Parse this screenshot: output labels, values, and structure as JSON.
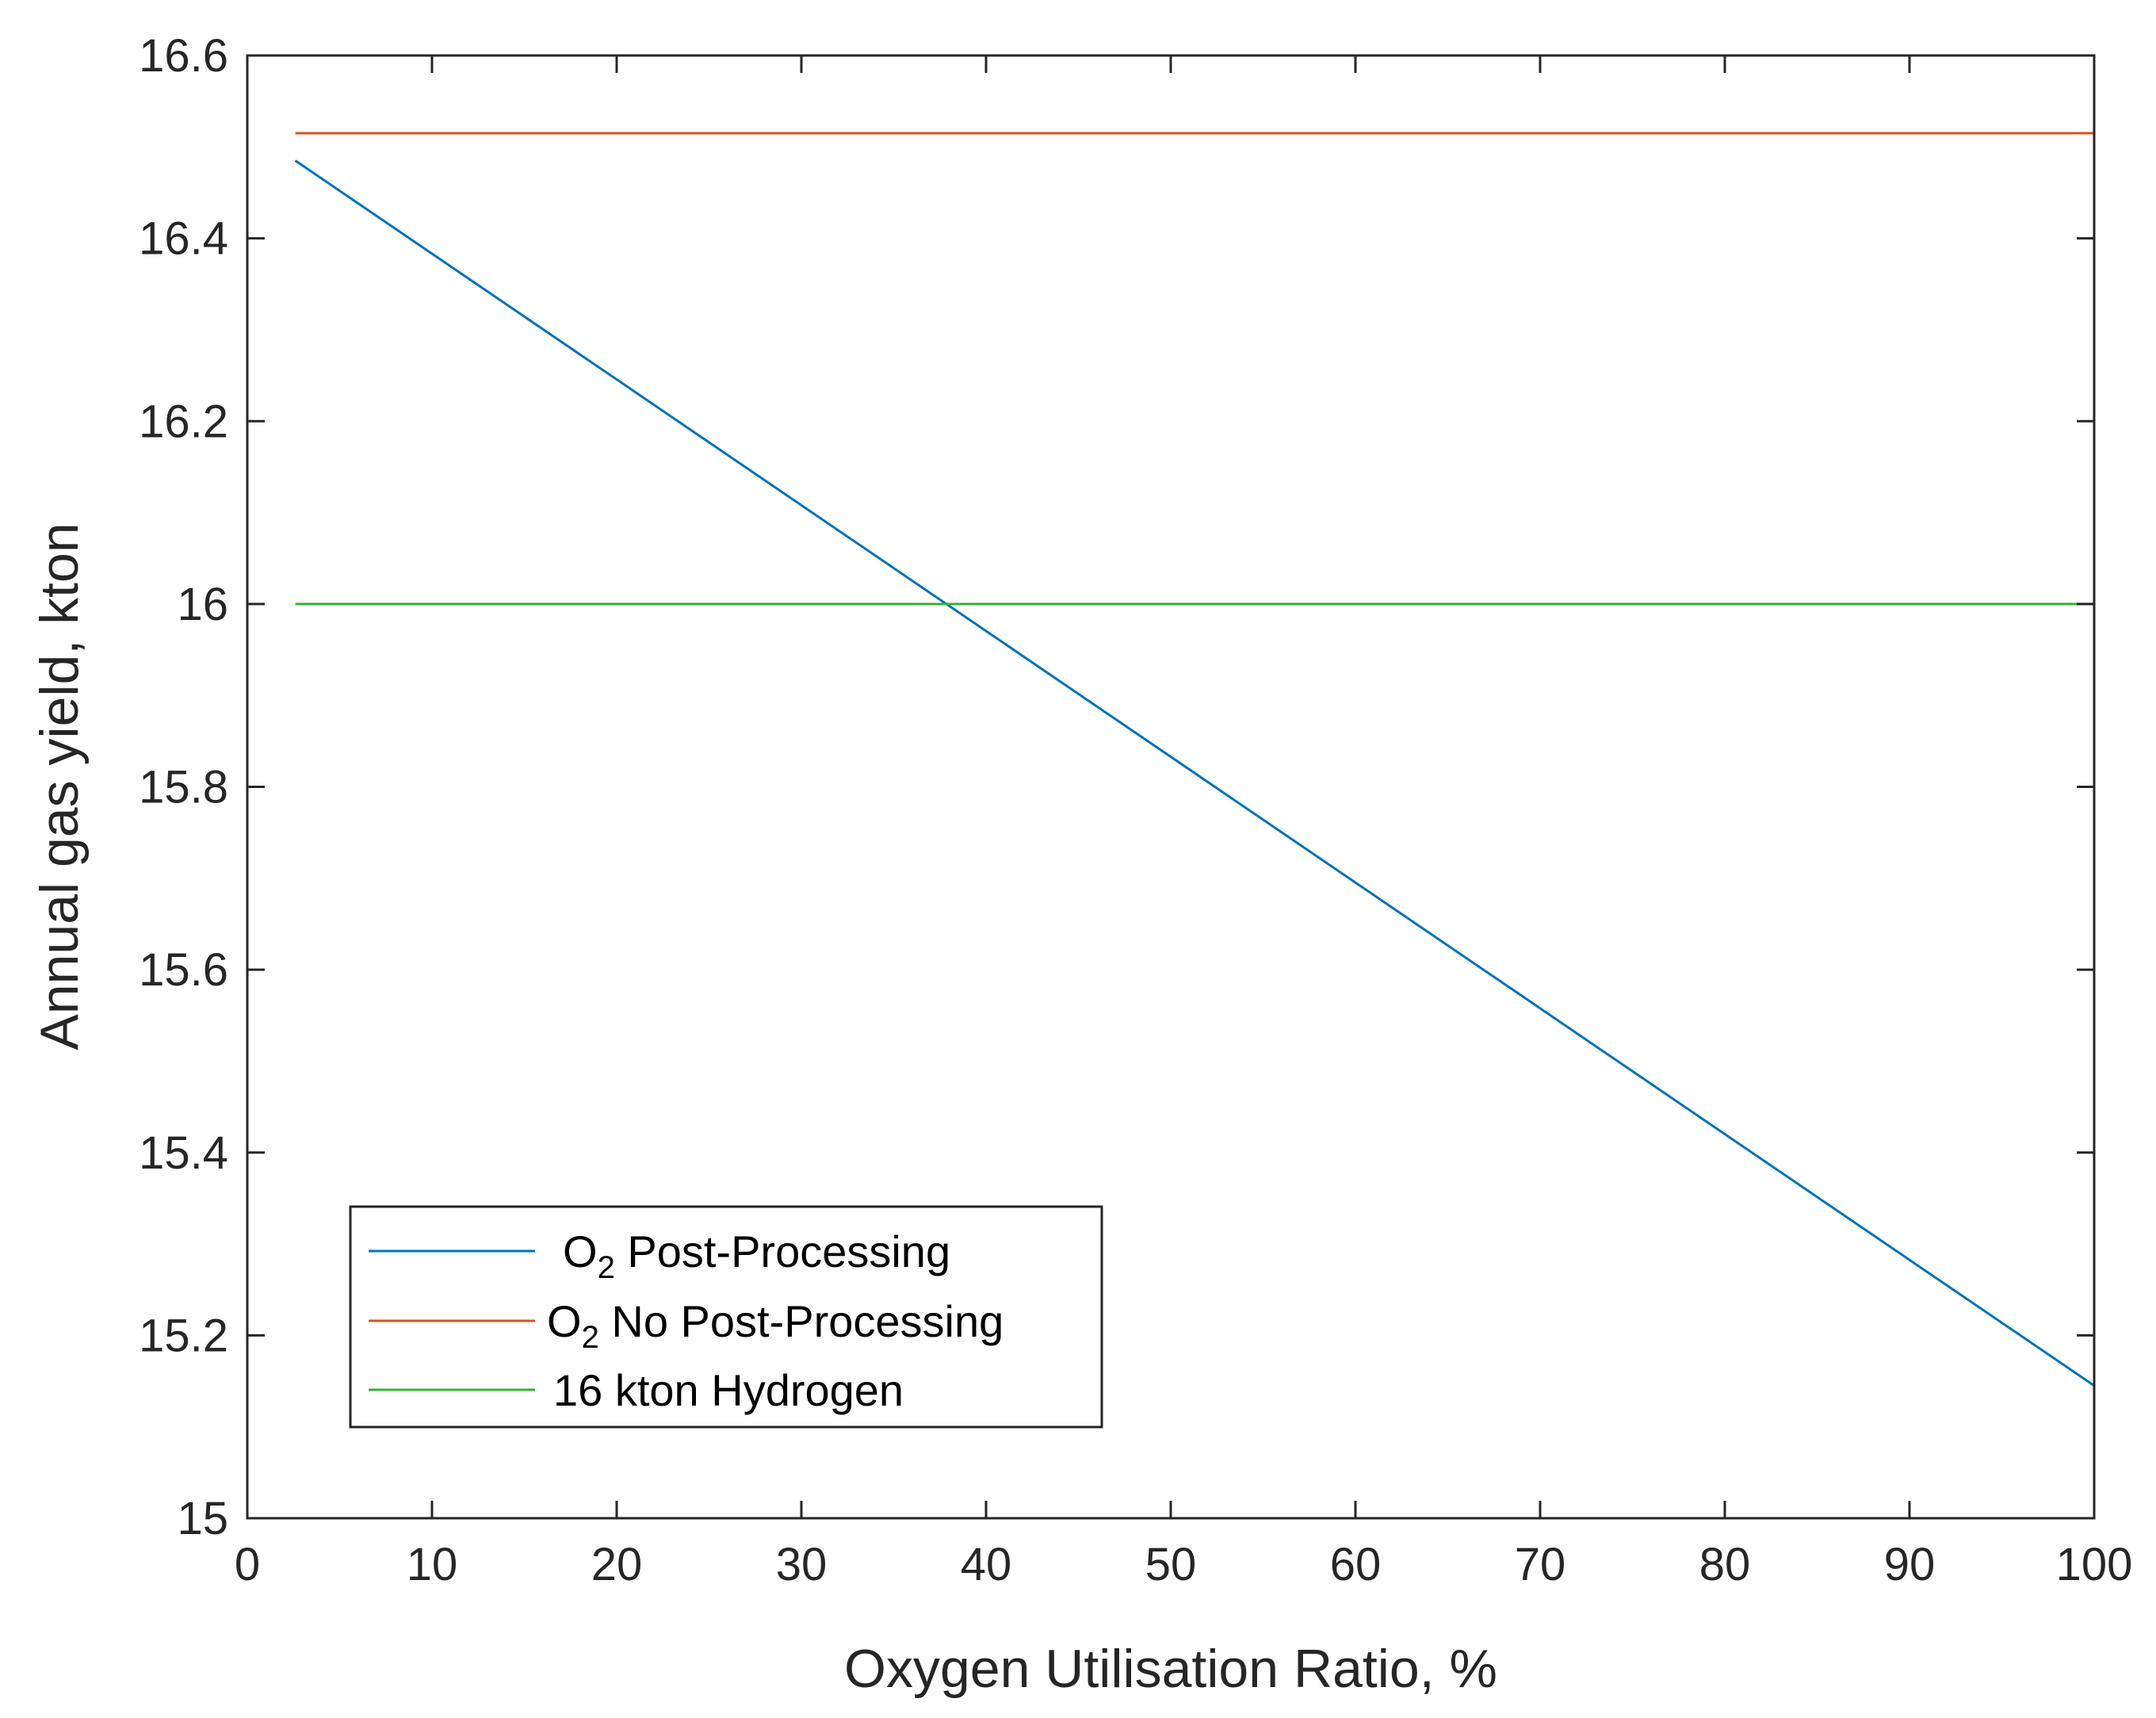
{
  "chart_data": {
    "type": "line",
    "title": "",
    "xlabel": "Oxygen Utilisation Ratio, %",
    "ylabel": "Annual gas yield, kton",
    "xlim": [
      0,
      100
    ],
    "ylim": [
      15,
      16.6
    ],
    "xticks": [
      "0",
      "10",
      "20",
      "30",
      "40",
      "50",
      "60",
      "70",
      "80",
      "90",
      "100"
    ],
    "yticks": [
      "15",
      "15.2",
      "15.4",
      "15.6",
      "15.8",
      "16",
      "16.2",
      "16.4",
      "16.6"
    ],
    "grid": false,
    "legend_position": "bottom-left",
    "series": [
      {
        "name": "O2 Post-Processing",
        "legend_main": "O",
        "legend_sub": "2",
        "legend_rest": " Post-Processing",
        "color": "#0072BD",
        "x": [
          2.6,
          100
        ],
        "y": [
          16.485,
          15.145
        ]
      },
      {
        "name": "O2 No Post-Processing",
        "legend_main": "O",
        "legend_sub": "2",
        "legend_rest": " No Post-Processing",
        "color": "#D95319",
        "x": [
          2.6,
          100
        ],
        "y": [
          16.515,
          16.515
        ]
      },
      {
        "name": "16 kton Hydrogen",
        "legend_main": "16 kton Hydrogen",
        "legend_sub": "",
        "legend_rest": "",
        "color": "#33B233",
        "x": [
          2.6,
          100
        ],
        "y": [
          16.0,
          16.0
        ]
      }
    ]
  }
}
